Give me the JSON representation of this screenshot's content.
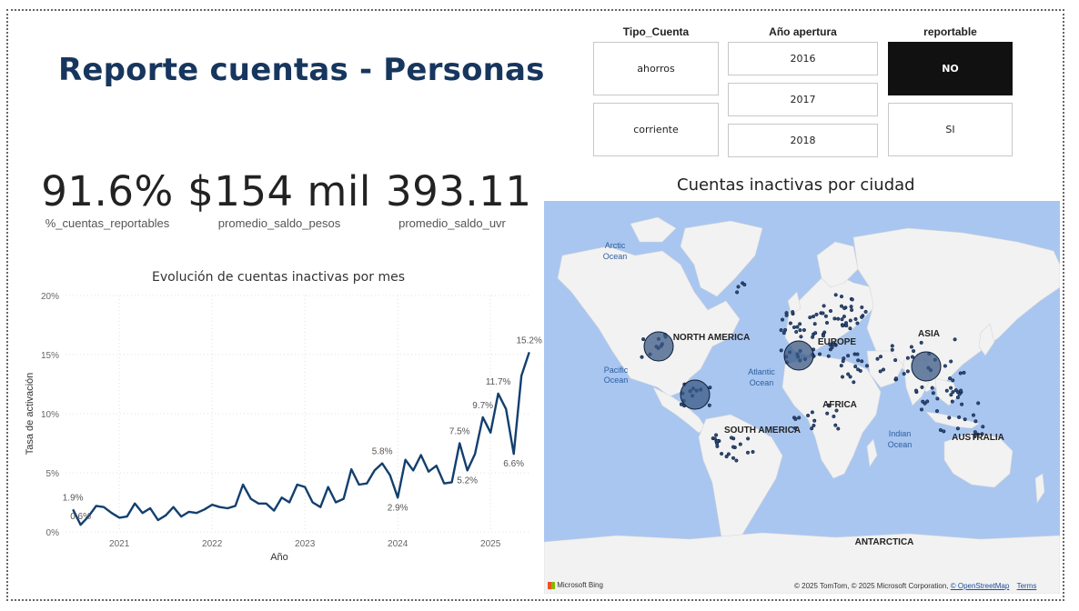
{
  "title": "Reporte cuentas - Personas",
  "kpis": [
    {
      "value": "91.6%",
      "label": "%_cuentas_reportables"
    },
    {
      "value": "$154 mil",
      "label": "promedio_saldo_pesos"
    },
    {
      "value": "393.11",
      "label": "promedio_saldo_uvr"
    }
  ],
  "slicers": {
    "tipo_cuenta": {
      "header": "Tipo_Cuenta",
      "options": [
        "ahorros",
        "corriente"
      ]
    },
    "anio_apertura": {
      "header": "Año apertura",
      "options": [
        "2016",
        "2017",
        "2018"
      ]
    },
    "reportable": {
      "header": "reportable",
      "options": [
        "NO",
        "SI"
      ],
      "selected": "NO"
    }
  },
  "line_chart": {
    "title": "Evolución de cuentas inactivas por mes",
    "xlabel": "Año",
    "ylabel": "Tasa de activación",
    "y_ticks": [
      "20%",
      "15%",
      "10%",
      "5%",
      "0%"
    ],
    "x_ticks": [
      "2021",
      "2022",
      "2023",
      "2024",
      "2025"
    ],
    "line_color": "#123f6e"
  },
  "chart_data": {
    "type": "line",
    "title": "Evolución de cuentas inactivas por mes",
    "xlabel": "Año",
    "ylabel": "Tasa de activación",
    "ylim": [
      0,
      20
    ],
    "xlim": [
      2020.42,
      2025.42
    ],
    "grid": true,
    "series": [
      {
        "x": [
          2020.5,
          2020.583,
          2020.667,
          2020.75,
          2020.833,
          2020.917,
          2021.0,
          2021.083,
          2021.167,
          2021.25,
          2021.333,
          2021.417,
          2021.5,
          2021.583,
          2021.667,
          2021.75,
          2021.833,
          2021.917,
          2022.0,
          2022.083,
          2022.167,
          2022.25,
          2022.333,
          2022.417,
          2022.5,
          2022.583,
          2022.667,
          2022.75,
          2022.833,
          2022.917,
          2023.0,
          2023.083,
          2023.167,
          2023.25,
          2023.333,
          2023.417,
          2023.5,
          2023.583,
          2023.667,
          2023.75,
          2023.833,
          2023.917,
          2024.0,
          2024.083,
          2024.167,
          2024.25,
          2024.333,
          2024.417,
          2024.5,
          2024.583,
          2024.667,
          2024.75,
          2024.833,
          2024.917,
          2025.0,
          2025.083,
          2025.167,
          2025.25,
          2025.333,
          2025.417
        ],
        "y": [
          1.9,
          0.6,
          1.3,
          2.2,
          2.1,
          1.6,
          1.2,
          1.3,
          2.4,
          1.6,
          2.0,
          1.0,
          1.4,
          2.1,
          1.3,
          1.7,
          1.6,
          1.9,
          2.3,
          2.1,
          2.0,
          2.2,
          4.0,
          2.8,
          2.4,
          2.4,
          1.8,
          2.9,
          2.5,
          4.0,
          3.8,
          2.5,
          2.1,
          3.8,
          2.5,
          2.8,
          5.3,
          4.0,
          4.1,
          5.2,
          5.8,
          4.8,
          2.9,
          6.1,
          5.2,
          6.5,
          5.1,
          5.6,
          4.1,
          4.2,
          7.5,
          5.2,
          6.6,
          9.7,
          8.4,
          11.7,
          10.4,
          6.6,
          13.2,
          15.2
        ]
      }
    ],
    "data_labels": [
      "1.9%",
      "0.6%",
      "5.8%",
      "2.9%",
      "7.5%",
      "5.2%",
      "9.7%",
      "11.7%",
      "6.6%",
      "15.2%"
    ]
  },
  "map": {
    "title": "Cuentas inactivas por ciudad",
    "water_color": "#a9c6f0",
    "land_color": "#f2f2f2",
    "bubble_color": "#3b5a86",
    "labels": {
      "arctic": "Arctic",
      "arctic2": "Ocean",
      "pacific": "Pacific",
      "pacific2": "Ocean",
      "atlantic": "Atlantic",
      "atlantic2": "Ocean",
      "indian": "Indian",
      "indian2": "Ocean",
      "north_america": "NORTH AMERICA",
      "south_america": "SOUTH AMERICA",
      "europe": "EUROPE",
      "africa": "AFRICA",
      "asia": "ASIA",
      "australia": "AUSTRALIA",
      "antarctica": "ANTARCTICA"
    },
    "bing_logo": "Microsoft Bing",
    "credit_text": "© 2025 TomTom, © 2025 Microsoft Corporation,",
    "credit_link": "© OpenStreetMap",
    "terms": "Terms"
  }
}
